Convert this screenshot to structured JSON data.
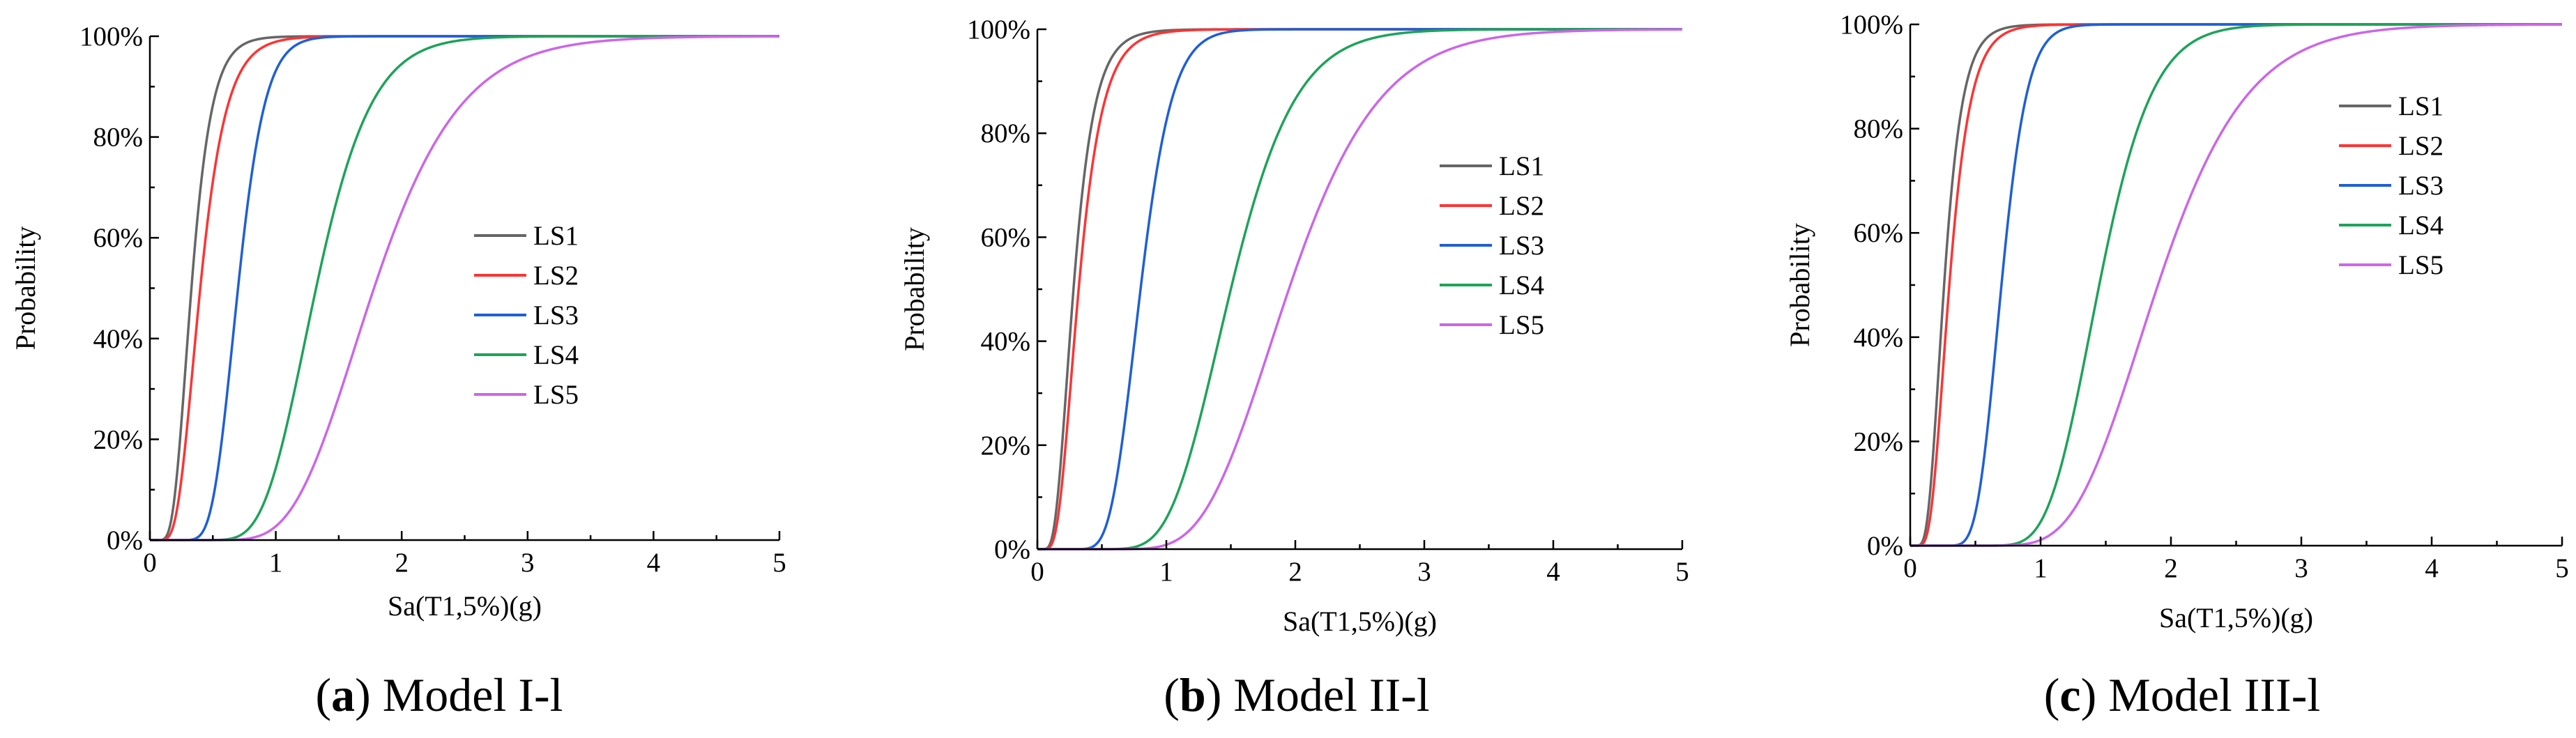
{
  "chart_data": [
    {
      "type": "line",
      "caption": {
        "letter": "a",
        "text": " Model I-l"
      },
      "xlabel": "Sa(T1,5%)(g)",
      "ylabel": "Probability",
      "xlim": [
        0,
        5
      ],
      "ylim": [
        0,
        1
      ],
      "xticks": [
        "0",
        "1",
        "2",
        "3",
        "4",
        "5"
      ],
      "yticks": [
        "0%",
        "20%",
        "40%",
        "60%",
        "80%",
        "100%"
      ],
      "legend": "center-right",
      "series": [
        {
          "name": "LS1",
          "color": "#666666",
          "median": 0.33,
          "beta": 0.38
        },
        {
          "name": "LS2",
          "color": "#ff3333",
          "median": 0.4,
          "beta": 0.4
        },
        {
          "name": "LS3",
          "color": "#1f5fd6",
          "median": 0.7,
          "beta": 0.24
        },
        {
          "name": "LS4",
          "color": "#1ea35a",
          "median": 1.32,
          "beta": 0.26
        },
        {
          "name": "LS5",
          "color": "#cc66e8",
          "median": 1.78,
          "beta": 0.3
        }
      ]
    },
    {
      "type": "line",
      "caption": {
        "letter": "b",
        "text": " Model II-l"
      },
      "xlabel": "Sa(T1,5%)(g)",
      "ylabel": "Probability",
      "xlim": [
        0,
        5
      ],
      "ylim": [
        0,
        1
      ],
      "xticks": [
        "0",
        "1",
        "2",
        "3",
        "4",
        "5"
      ],
      "yticks": [
        "0%",
        "20%",
        "40%",
        "60%",
        "80%",
        "100%"
      ],
      "legend": "upper-right",
      "series": [
        {
          "name": "LS1",
          "color": "#666666",
          "median": 0.28,
          "beta": 0.45
        },
        {
          "name": "LS2",
          "color": "#ff3333",
          "median": 0.32,
          "beta": 0.45
        },
        {
          "name": "LS3",
          "color": "#1f5fd6",
          "median": 0.8,
          "beta": 0.24
        },
        {
          "name": "LS4",
          "color": "#1ea35a",
          "median": 1.5,
          "beta": 0.26
        },
        {
          "name": "LS5",
          "color": "#cc66e8",
          "median": 1.95,
          "beta": 0.28
        }
      ]
    },
    {
      "type": "line",
      "caption": {
        "letter": "c",
        "text": " Model III-l"
      },
      "xlabel": "Sa(T1,5%)(g)",
      "ylabel": "Probability",
      "xlim": [
        0,
        5
      ],
      "ylim": [
        0,
        1
      ],
      "xticks": [
        "0",
        "1",
        "2",
        "3",
        "4",
        "5"
      ],
      "yticks": [
        "0%",
        "20%",
        "40%",
        "60%",
        "80%",
        "100%"
      ],
      "legend": "upper-right",
      "series": [
        {
          "name": "LS1",
          "color": "#666666",
          "median": 0.26,
          "beta": 0.42
        },
        {
          "name": "LS2",
          "color": "#ff3333",
          "median": 0.3,
          "beta": 0.42
        },
        {
          "name": "LS3",
          "color": "#1f5fd6",
          "median": 0.7,
          "beta": 0.22
        },
        {
          "name": "LS4",
          "color": "#1ea35a",
          "median": 1.45,
          "beta": 0.22
        },
        {
          "name": "LS5",
          "color": "#cc66e8",
          "median": 1.9,
          "beta": 0.28
        }
      ]
    }
  ]
}
